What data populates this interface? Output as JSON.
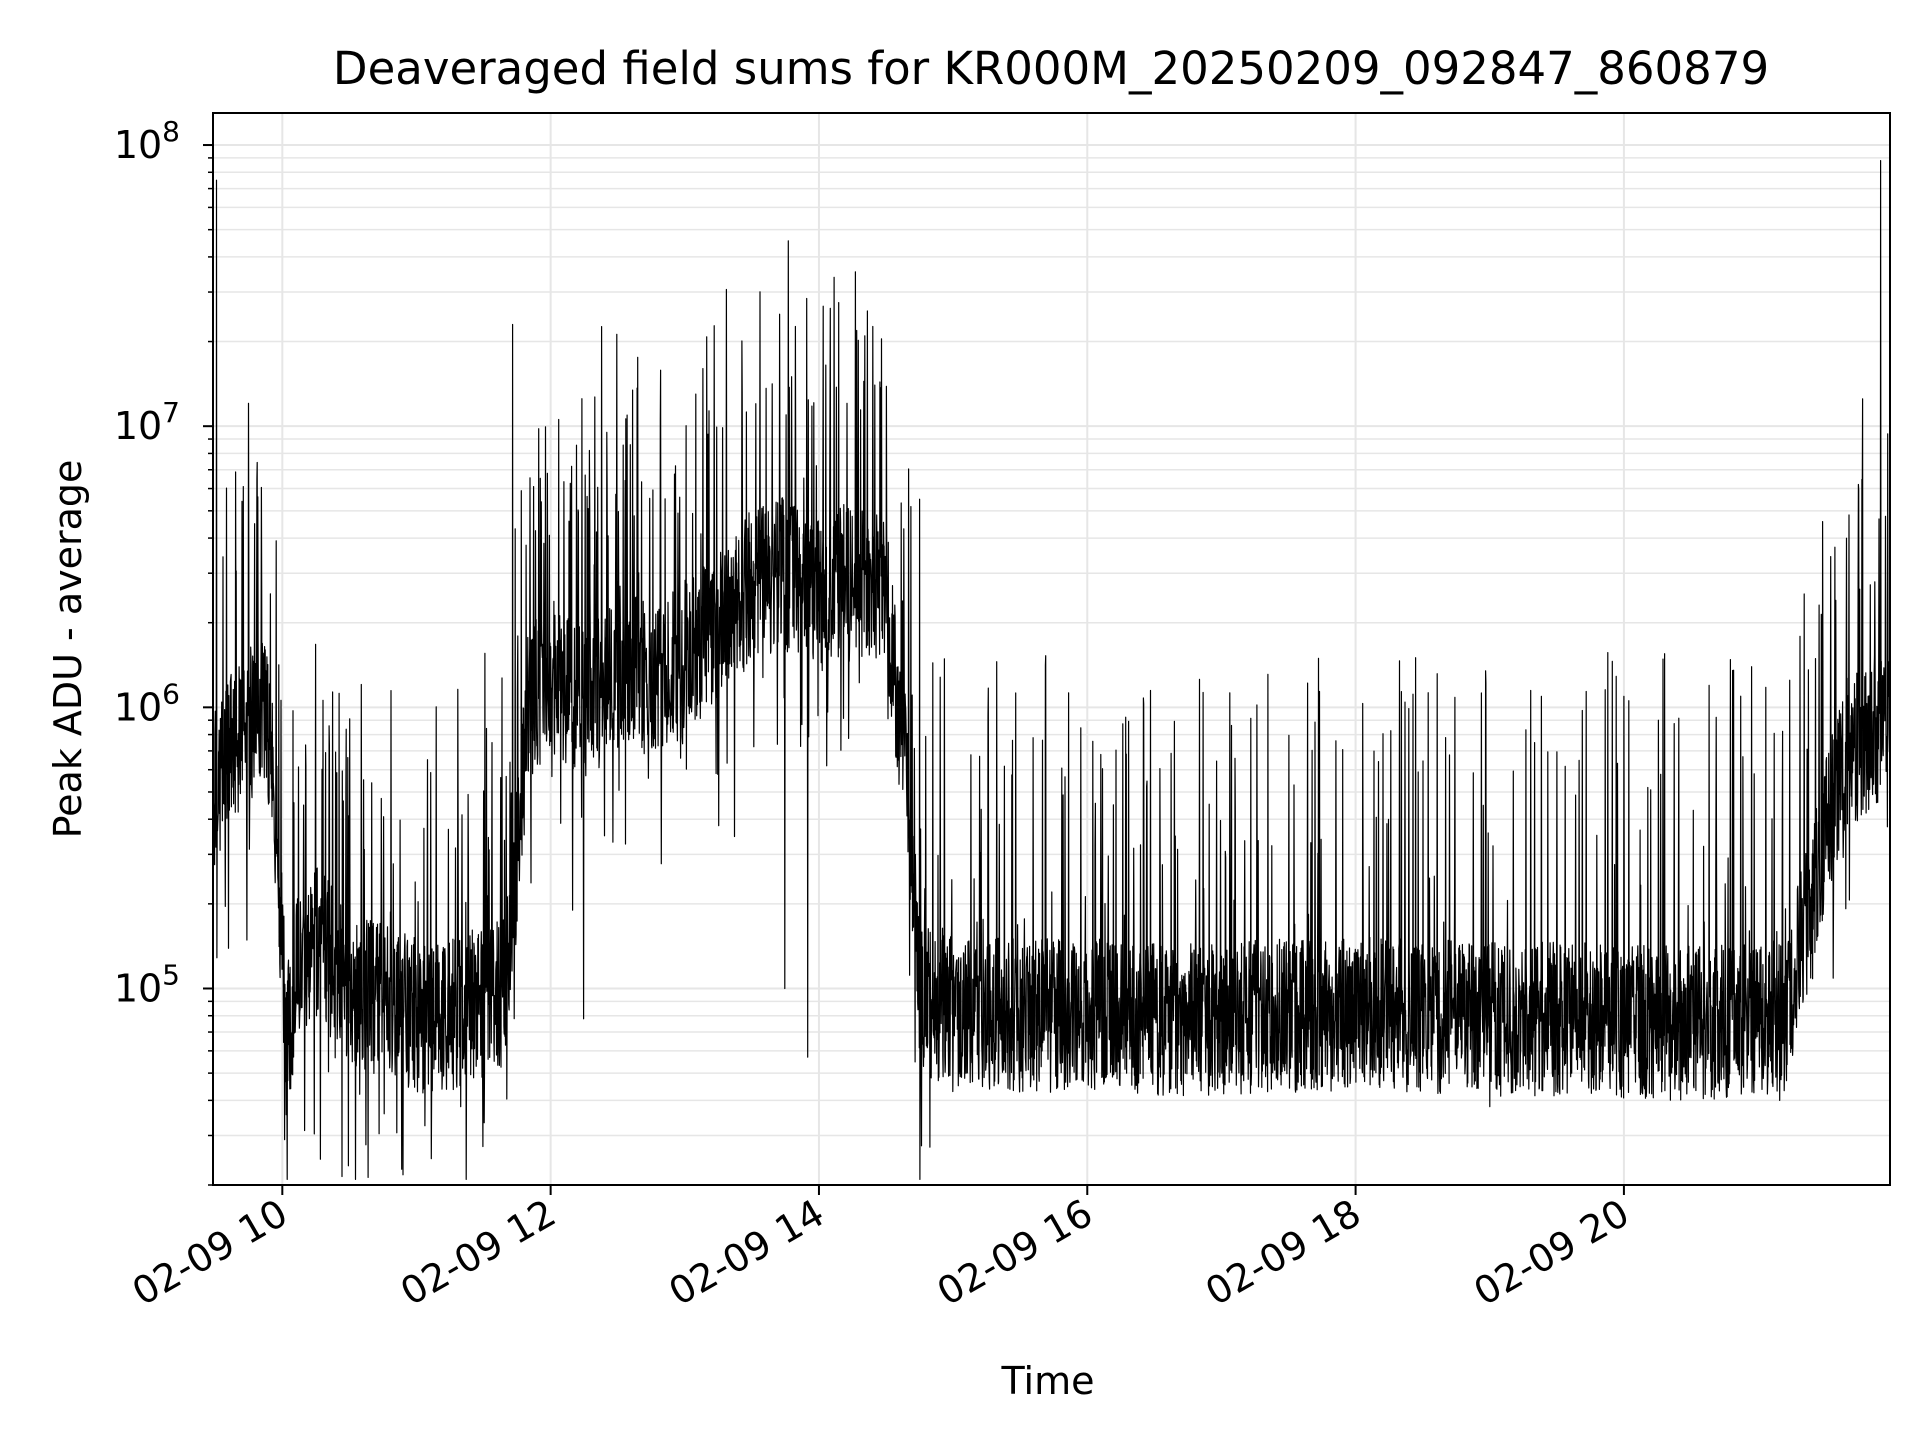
{
  "chart_data": {
    "type": "line",
    "title": "Deaveraged field sums for KR000M_20250209_092847_860879",
    "xlabel": "Time",
    "ylabel": "Peak ADU - average",
    "y_scale": "log",
    "ylim": [
      20000,
      130000000
    ],
    "xlim": [
      "2025-02-09 09:29",
      "2025-02-09 21:59"
    ],
    "grid": true,
    "line_color": "#000000",
    "grid_color": "#e6e6e6",
    "x_ticks": [
      {
        "value": "2025-02-09 10:00",
        "label": "02-09 10"
      },
      {
        "value": "2025-02-09 12:00",
        "label": "02-09 12"
      },
      {
        "value": "2025-02-09 14:00",
        "label": "02-09 14"
      },
      {
        "value": "2025-02-09 16:00",
        "label": "02-09 16"
      },
      {
        "value": "2025-02-09 18:00",
        "label": "02-09 18"
      },
      {
        "value": "2025-02-09 20:00",
        "label": "02-09 20"
      }
    ],
    "y_ticks": [
      {
        "value": 100000,
        "base": "10",
        "exp": "5"
      },
      {
        "value": 1000000,
        "base": "10",
        "exp": "6"
      },
      {
        "value": 10000000,
        "base": "10",
        "exp": "7"
      },
      {
        "value": 100000000,
        "base": "10",
        "exp": "8"
      }
    ],
    "series": [
      {
        "x": [
          "2025-02-09 09:29",
          "2025-02-09 09:33",
          "2025-02-09 09:37",
          "2025-02-09 09:42",
          "2025-02-09 09:47",
          "2025-02-09 09:52",
          "2025-02-09 09:55",
          "2025-02-09 09:58",
          "2025-02-09 10:02",
          "2025-02-09 10:06",
          "2025-02-09 10:15",
          "2025-02-09 10:30",
          "2025-02-09 10:45",
          "2025-02-09 11:00",
          "2025-02-09 11:15",
          "2025-02-09 11:30",
          "2025-02-09 11:40",
          "2025-02-09 11:45",
          "2025-02-09 11:50",
          "2025-02-09 12:00",
          "2025-02-09 12:15",
          "2025-02-09 12:30",
          "2025-02-09 12:45",
          "2025-02-09 13:00",
          "2025-02-09 13:15",
          "2025-02-09 13:30",
          "2025-02-09 13:45",
          "2025-02-09 14:00",
          "2025-02-09 14:15",
          "2025-02-09 14:30",
          "2025-02-09 14:40",
          "2025-02-09 14:45",
          "2025-02-09 14:50",
          "2025-02-09 15:00",
          "2025-02-09 15:30",
          "2025-02-09 16:00",
          "2025-02-09 16:30",
          "2025-02-09 17:00",
          "2025-02-09 17:30",
          "2025-02-09 18:00",
          "2025-02-09 18:30",
          "2025-02-09 19:00",
          "2025-02-09 19:30",
          "2025-02-09 20:00",
          "2025-02-09 20:30",
          "2025-02-09 21:00",
          "2025-02-09 21:12",
          "2025-02-09 21:20",
          "2025-02-09 21:30",
          "2025-02-09 21:40",
          "2025-02-09 21:50",
          "2025-02-09 21:59"
        ],
        "y": [
          500000,
          600000,
          700000,
          800000,
          900000,
          1000000,
          700000,
          300000,
          60000,
          120000,
          150000,
          100000,
          90000,
          80000,
          80000,
          90000,
          100000,
          300000,
          1000000,
          1300000,
          1000000,
          1500000,
          1200000,
          1500000,
          2000000,
          2800000,
          3000000,
          2500000,
          3000000,
          2500000,
          500000,
          100000,
          90000,
          85000,
          80000,
          80000,
          78000,
          78000,
          80000,
          82000,
          80000,
          78000,
          78000,
          76000,
          75000,
          78000,
          80000,
          150000,
          350000,
          700000,
          800000,
          900000
        ]
      }
    ],
    "spikes": [
      {
        "x": "2025-02-09 09:31",
        "y": 75000000
      },
      {
        "x": "2025-02-09 09:48",
        "y": 4500000
      },
      {
        "x": "2025-02-09 11:43",
        "y": 23000000
      },
      {
        "x": "2025-02-09 11:55",
        "y": 9800000
      },
      {
        "x": "2025-02-09 12:25",
        "y": 9500000
      },
      {
        "x": "2025-02-09 13:05",
        "y": 13000000
      },
      {
        "x": "2025-02-09 13:48",
        "y": 15000000
      },
      {
        "x": "2025-02-09 14:25",
        "y": 14000000
      },
      {
        "x": "2025-02-09 14:45",
        "y": 5500000
      },
      {
        "x": "2025-02-09 21:35",
        "y": 2400000
      },
      {
        "x": "2025-02-09 21:47",
        "y": 12500000
      },
      {
        "x": "2025-02-09 21:55",
        "y": 88000000
      }
    ],
    "dips": [
      {
        "x": "2025-02-09 10:01",
        "y": 29000
      },
      {
        "x": "2025-02-09 11:20",
        "y": 38000
      },
      {
        "x": "2025-02-09 12:10",
        "y": 190000
      },
      {
        "x": "2025-02-09 12:15",
        "y": 78000
      },
      {
        "x": "2025-02-09 13:45",
        "y": 100000
      },
      {
        "x": "2025-02-09 13:55",
        "y": 57000
      },
      {
        "x": "2025-02-09 15:00",
        "y": 43000
      },
      {
        "x": "2025-02-09 19:00",
        "y": 38000
      },
      {
        "x": "2025-02-09 21:10",
        "y": 40000
      }
    ]
  }
}
